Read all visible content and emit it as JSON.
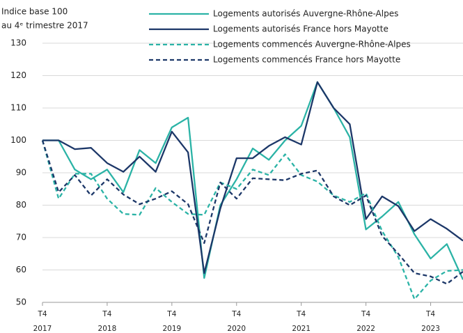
{
  "chart_data": {
    "type": "line",
    "y_label": [
      "Indice base 100",
      "au 4ᵉ trimestre 2017"
    ],
    "categories": [
      "T4",
      null,
      null,
      null,
      "T4",
      null,
      null,
      null,
      "T4",
      null,
      null,
      null,
      "T4",
      null,
      null,
      null,
      "T4",
      null,
      null,
      null,
      "T4",
      null,
      null,
      null,
      "T4",
      null,
      null
    ],
    "years": [
      "2017",
      null,
      null,
      null,
      "2018",
      null,
      null,
      null,
      "2019",
      null,
      null,
      null,
      "2020",
      null,
      null,
      null,
      "2021",
      null,
      null,
      null,
      "2022",
      null,
      null,
      null,
      "2023",
      null,
      null
    ],
    "series": [
      {
        "name": "Logements autorisés Auvergne-Rhône-Alpes",
        "color": "#2bb3a6",
        "dash": false,
        "values": [
          100,
          100,
          91,
          88,
          91,
          84,
          97,
          93,
          104,
          107,
          57.5,
          80,
          88,
          97.5,
          94,
          100,
          104.5,
          118,
          110,
          101,
          72.5,
          76.5,
          81,
          71,
          63.5,
          68,
          57
        ]
      },
      {
        "name": "Logements autorisés France hors Mayotte",
        "color": "#1c3768",
        "dash": false,
        "values": [
          100,
          100,
          97.3,
          97.7,
          93,
          90.3,
          95,
          90.3,
          102.7,
          96.3,
          59,
          79,
          94.5,
          94.5,
          98.3,
          101,
          98.7,
          118,
          110,
          105,
          75.7,
          82.7,
          79.7,
          72,
          75.7,
          72.7,
          69
        ]
      },
      {
        "name": "Logements commencés Auvergne-Rhône-Alpes",
        "color": "#2bb3a6",
        "dash": true,
        "values": [
          100,
          82,
          89.7,
          89.7,
          82,
          77.3,
          77,
          85.3,
          81,
          77.3,
          77,
          87,
          85,
          91,
          89.3,
          95.7,
          89.3,
          87.3,
          83,
          81,
          83.7,
          72,
          64,
          51,
          56.7,
          59.7,
          60
        ]
      },
      {
        "name": "Logements commencés France hors Mayotte",
        "color": "#1c3768",
        "dash": true,
        "values": [
          100,
          84,
          89.3,
          83,
          88,
          83.3,
          80.3,
          82,
          84.3,
          80.3,
          68.3,
          87,
          82,
          88.3,
          88,
          87.7,
          89.7,
          90.7,
          82.7,
          80,
          83,
          70.5,
          65,
          59,
          58,
          55.7,
          59.5
        ]
      }
    ],
    "ylim": [
      50,
      130
    ],
    "yticks": [
      50,
      60,
      70,
      80,
      90,
      100,
      110,
      120,
      130
    ],
    "grid": true
  }
}
